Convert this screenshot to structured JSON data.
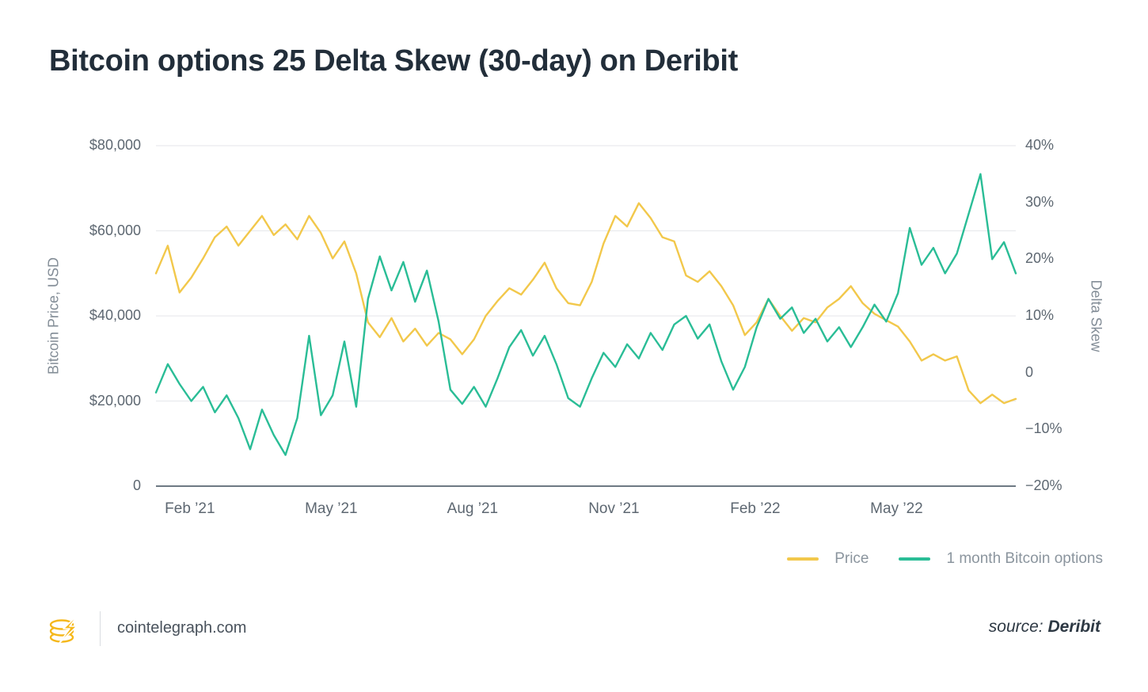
{
  "title": "Bitcoin options 25 Delta Skew (30-day) on Deribit",
  "footer": {
    "site": "cointelegraph.com",
    "source_label": "source:",
    "source_value": "Deribit"
  },
  "colors": {
    "price_line": "#F2C84B",
    "skew_line": "#2ABD96",
    "grid": "#e9ebed",
    "baseline": "#6e7983"
  },
  "chart_data": {
    "type": "line",
    "title": "Bitcoin options 25 Delta Skew (30-day) on Deribit",
    "grid": "horizontal",
    "legend_position": "bottom-right",
    "x_unit": "months since chart start (early Jan 2021)",
    "x_step_months": 0.25,
    "x_domain": [
      0,
      18.25
    ],
    "x_axis": {
      "ticks": [
        {
          "label": "Feb ’21",
          "t": 0.72
        },
        {
          "label": "May ’21",
          "t": 3.72
        },
        {
          "label": "Aug ’21",
          "t": 6.72
        },
        {
          "label": "Nov ’21",
          "t": 9.72
        },
        {
          "label": "Feb ’22",
          "t": 12.72
        },
        {
          "label": "May ’22",
          "t": 15.72
        }
      ]
    },
    "left_axis": {
      "label": "Bitcoin Price, USD",
      "range": [
        0,
        80000
      ],
      "ticks": [
        {
          "label": "$80,000",
          "value": 80000
        },
        {
          "label": "$60,000",
          "value": 60000
        },
        {
          "label": "$40,000",
          "value": 40000
        },
        {
          "label": "$20,000",
          "value": 20000
        },
        {
          "label": "0",
          "value": 0
        }
      ]
    },
    "right_axis": {
      "label": "Delta Skew",
      "range": [
        -20,
        40
      ],
      "ticks": [
        {
          "label": "40%",
          "value": 40
        },
        {
          "label": "30%",
          "value": 30
        },
        {
          "label": "20%",
          "value": 20
        },
        {
          "label": "10%",
          "value": 10
        },
        {
          "label": "0",
          "value": 0
        },
        {
          "label": "−10%",
          "value": -10
        },
        {
          "label": "−20%",
          "value": -20
        }
      ]
    },
    "series": [
      {
        "name": "Price",
        "axis": "left",
        "color": "#F2C84B",
        "values": [
          50000,
          56500,
          45500,
          49000,
          53500,
          58500,
          61000,
          56500,
          60000,
          63500,
          59000,
          61500,
          58000,
          63500,
          59500,
          53500,
          57500,
          50000,
          38500,
          35000,
          39500,
          34000,
          37000,
          33000,
          36000,
          34500,
          31000,
          34500,
          40000,
          43500,
          46500,
          45000,
          48500,
          52500,
          46500,
          43000,
          42500,
          48000,
          57000,
          63500,
          61000,
          66500,
          63000,
          58500,
          57500,
          49500,
          48000,
          50500,
          47000,
          42500,
          35500,
          38500,
          44000,
          40000,
          36500,
          39500,
          38500,
          42000,
          44000,
          47000,
          43000,
          40500,
          39000,
          37500,
          34000,
          29500,
          31000,
          29500,
          30500,
          22500,
          19500,
          21500,
          19500,
          20500
        ]
      },
      {
        "name": "1 month Bitcoin options",
        "axis": "right",
        "color": "#2ABD96",
        "values": [
          -3.5,
          1.5,
          -2,
          -5,
          -2.5,
          -7,
          -4,
          -8,
          -13.5,
          -6.5,
          -11,
          -14.5,
          -8,
          6.5,
          -7.5,
          -4,
          5.5,
          -6,
          13,
          20.5,
          14.5,
          19.5,
          12.5,
          18,
          9,
          -3,
          -5.5,
          -2.5,
          -6,
          -1,
          4.5,
          7.5,
          3,
          6.5,
          1.5,
          -4.5,
          -6,
          -1,
          3.5,
          1,
          5,
          2.5,
          7,
          4,
          8.5,
          10,
          6,
          8.5,
          2,
          -3,
          1,
          8,
          13,
          9.5,
          11.5,
          7,
          9.5,
          5.5,
          8,
          4.5,
          8,
          12,
          9,
          14,
          25.5,
          19,
          22,
          17.5,
          21,
          28,
          35,
          20,
          23,
          17.5
        ]
      }
    ]
  }
}
